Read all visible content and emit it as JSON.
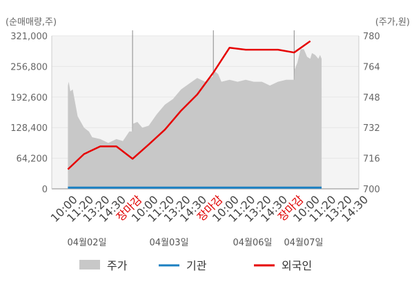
{
  "chart_data": {
    "type": "line",
    "left_axis_label": "(순매매량,주)",
    "right_axis_label": "(주가,원)",
    "left_ticks": [
      "321,000",
      "256,800",
      "192,600",
      "128,400",
      "64,200",
      "0"
    ],
    "left_ylim": [
      0,
      321000
    ],
    "right_ticks": [
      "780",
      "764",
      "748",
      "732",
      "716",
      "700"
    ],
    "right_ylim": [
      700,
      780
    ],
    "x_tick_labels": [
      "10:00",
      "11:20",
      "13:20",
      "14:30",
      "장마감",
      "10:00",
      "11:20",
      "13:20",
      "14:30",
      "장마감",
      "10:00",
      "11:20",
      "13:20",
      "14:30",
      "장마감",
      "10:00",
      "11:20",
      "13:20",
      "14:30"
    ],
    "x_tick_is_close": [
      false,
      false,
      false,
      false,
      true,
      false,
      false,
      false,
      false,
      true,
      false,
      false,
      false,
      false,
      true,
      false,
      false,
      false,
      false
    ],
    "date_labels": [
      "04월02일",
      "04월03일",
      "04월06일",
      "04월07일"
    ],
    "series": [
      {
        "name": "주가",
        "kind": "area",
        "axis": "right",
        "color": "#c8c8c8",
        "x": [
          0,
          0.05,
          0.15,
          0.3,
          0.6,
          1,
          1.3,
          1.5,
          2.0,
          2.5,
          3.0,
          3.4,
          3.8,
          4.0,
          4.01,
          4.3,
          4.6,
          5.0,
          5.5,
          6.0,
          6.5,
          7.0,
          7.5,
          8.0,
          8.5,
          9.0,
          9.01,
          9.3,
          9.5,
          10.0,
          10.5,
          11.0,
          11.5,
          12.0,
          12.5,
          13.0,
          13.5,
          14.0,
          14.01,
          14.2,
          14.4,
          14.6,
          14.8,
          15.0,
          15.1,
          15.3,
          15.5,
          15.6,
          15.7
        ],
        "y": [
          754,
          756,
          751,
          752,
          738,
          732,
          730,
          727,
          726,
          724,
          726,
          725,
          730,
          730,
          734,
          735,
          732,
          733,
          739,
          744,
          747,
          752,
          755,
          758,
          756,
          759,
          762,
          760,
          756,
          757,
          756,
          757,
          756,
          756,
          754,
          756,
          757,
          757,
          762,
          766,
          773,
          773,
          769,
          768,
          771,
          770,
          768,
          770,
          768
        ]
      },
      {
        "name": "기관",
        "kind": "line",
        "axis": "left",
        "color": "#1a7fc1",
        "x": [
          0,
          15.7
        ],
        "y": [
          2500,
          2500
        ]
      },
      {
        "name": "외국인",
        "kind": "line",
        "axis": "left",
        "color": "#e60000",
        "x": [
          0,
          1,
          2,
          3,
          4,
          5,
          6,
          7,
          8,
          9,
          10,
          11,
          12,
          13,
          14,
          15
        ],
        "y": [
          41000,
          73000,
          89000,
          89000,
          63000,
          93000,
          124000,
          164000,
          198000,
          244000,
          296000,
          292000,
          292000,
          292000,
          286000,
          310000
        ]
      }
    ],
    "x_range": [
      -1,
      18
    ],
    "grid": true,
    "legend_placement": "bottom"
  },
  "legend": [
    {
      "label": "주가",
      "color": "#c8c8c8",
      "shape": "box"
    },
    {
      "label": "기관",
      "color": "#1a7fc1",
      "shape": "line"
    },
    {
      "label": "외국인",
      "color": "#e60000",
      "shape": "line"
    }
  ]
}
